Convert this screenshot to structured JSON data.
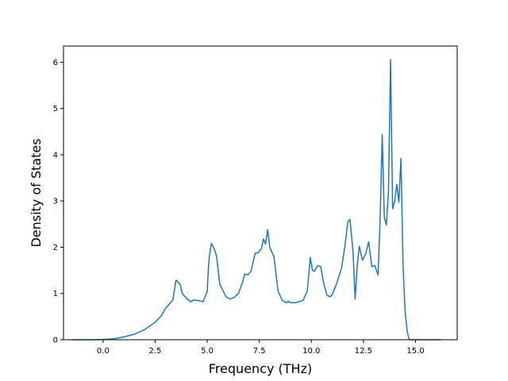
{
  "chart_data": {
    "type": "line",
    "title": "",
    "xlabel": "Frequency (THz)",
    "ylabel": "Density of States",
    "xlim": [
      -1.9,
      17.0
    ],
    "ylim": [
      0,
      6.35
    ],
    "grid": false,
    "legend": "none",
    "line_color": "#1f77b4",
    "xticks": [
      {
        "value": 0.0,
        "label": "0.0"
      },
      {
        "value": 2.5,
        "label": "2.5"
      },
      {
        "value": 5.0,
        "label": "5.0"
      },
      {
        "value": 7.5,
        "label": "7.5"
      },
      {
        "value": 10.0,
        "label": "10.0"
      },
      {
        "value": 12.5,
        "label": "12.5"
      },
      {
        "value": 15.0,
        "label": "15.0"
      }
    ],
    "yticks": [
      {
        "value": 0,
        "label": "0"
      },
      {
        "value": 1,
        "label": "1"
      },
      {
        "value": 2,
        "label": "2"
      },
      {
        "value": 3,
        "label": "3"
      },
      {
        "value": 4,
        "label": "4"
      },
      {
        "value": 5,
        "label": "5"
      },
      {
        "value": 6,
        "label": "6"
      }
    ],
    "series": [
      {
        "x": [
          -1.5,
          -0.5,
          0.0,
          0.5,
          1.0,
          1.5,
          2.0,
          2.5,
          2.8,
          3.0,
          3.2,
          3.35,
          3.5,
          3.7,
          3.8,
          4.0,
          4.2,
          4.35,
          4.5,
          4.7,
          4.8,
          5.0,
          5.05,
          5.1,
          5.2,
          5.35,
          5.45,
          5.6,
          5.9,
          6.1,
          6.3,
          6.5,
          6.7,
          6.8,
          6.95,
          7.1,
          7.3,
          7.45,
          7.6,
          7.7,
          7.8,
          7.9,
          8.0,
          8.2,
          8.4,
          8.6,
          8.8,
          8.9,
          9.0,
          9.2,
          9.4,
          9.6,
          9.8,
          9.95,
          10.05,
          10.15,
          10.3,
          10.45,
          10.6,
          10.75,
          10.9,
          11.0,
          11.2,
          11.45,
          11.6,
          11.75,
          11.85,
          12.0,
          12.1,
          12.2,
          12.3,
          12.45,
          12.6,
          12.75,
          12.9,
          13.05,
          13.2,
          13.3,
          13.4,
          13.5,
          13.6,
          13.7,
          13.8,
          13.9,
          14.0,
          14.1,
          14.2,
          14.3,
          14.4,
          14.5,
          14.6,
          14.7,
          14.9,
          15.5,
          16.2
        ],
        "y": [
          0,
          0,
          0.005,
          0.02,
          0.06,
          0.12,
          0.22,
          0.38,
          0.52,
          0.68,
          0.78,
          0.86,
          1.29,
          1.2,
          1.0,
          0.9,
          0.82,
          0.86,
          0.85,
          0.84,
          0.82,
          1.05,
          1.5,
          1.8,
          2.08,
          1.95,
          1.8,
          1.2,
          0.93,
          0.88,
          0.92,
          1.0,
          1.25,
          1.42,
          1.4,
          1.48,
          1.87,
          1.88,
          1.97,
          2.18,
          2.07,
          2.38,
          2.0,
          1.8,
          1.05,
          0.85,
          0.8,
          0.83,
          0.8,
          0.8,
          0.82,
          0.85,
          1.05,
          1.78,
          1.5,
          1.48,
          1.6,
          1.58,
          1.2,
          0.96,
          0.93,
          0.97,
          1.2,
          1.55,
          2.0,
          2.55,
          2.6,
          1.9,
          0.88,
          1.6,
          2.02,
          1.72,
          1.85,
          2.12,
          1.58,
          1.6,
          1.4,
          2.6,
          4.43,
          2.65,
          2.48,
          3.2,
          6.06,
          2.83,
          3.0,
          3.36,
          2.97,
          3.92,
          1.6,
          0.6,
          0.18,
          0,
          0,
          0,
          0
        ]
      }
    ]
  }
}
